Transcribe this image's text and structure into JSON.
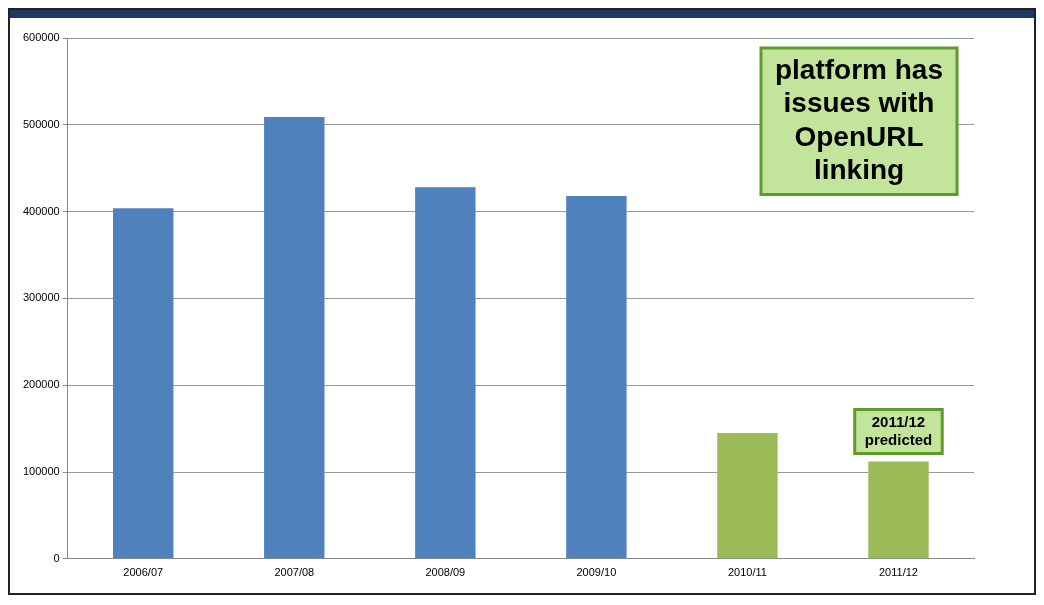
{
  "chart_data": {
    "type": "bar",
    "categories": [
      "2006/07",
      "2007/08",
      "2008/09",
      "2009/10",
      "2010/11",
      "2011/12"
    ],
    "values": [
      404000,
      509000,
      428000,
      418000,
      145000,
      112000
    ],
    "colors": [
      "#4f81bd",
      "#4f81bd",
      "#4f81bd",
      "#4f81bd",
      "#9bbb59",
      "#9bbb59"
    ],
    "ylim": [
      0,
      600000
    ],
    "yticks": [
      0,
      100000,
      200000,
      300000,
      400000,
      500000,
      600000
    ],
    "grid": "y",
    "legend": false,
    "annotations": [
      "platform has issues with OpenURL linking",
      {
        "text": "2011/12 predicted",
        "x": "2011/12",
        "y": 112000
      }
    ]
  }
}
